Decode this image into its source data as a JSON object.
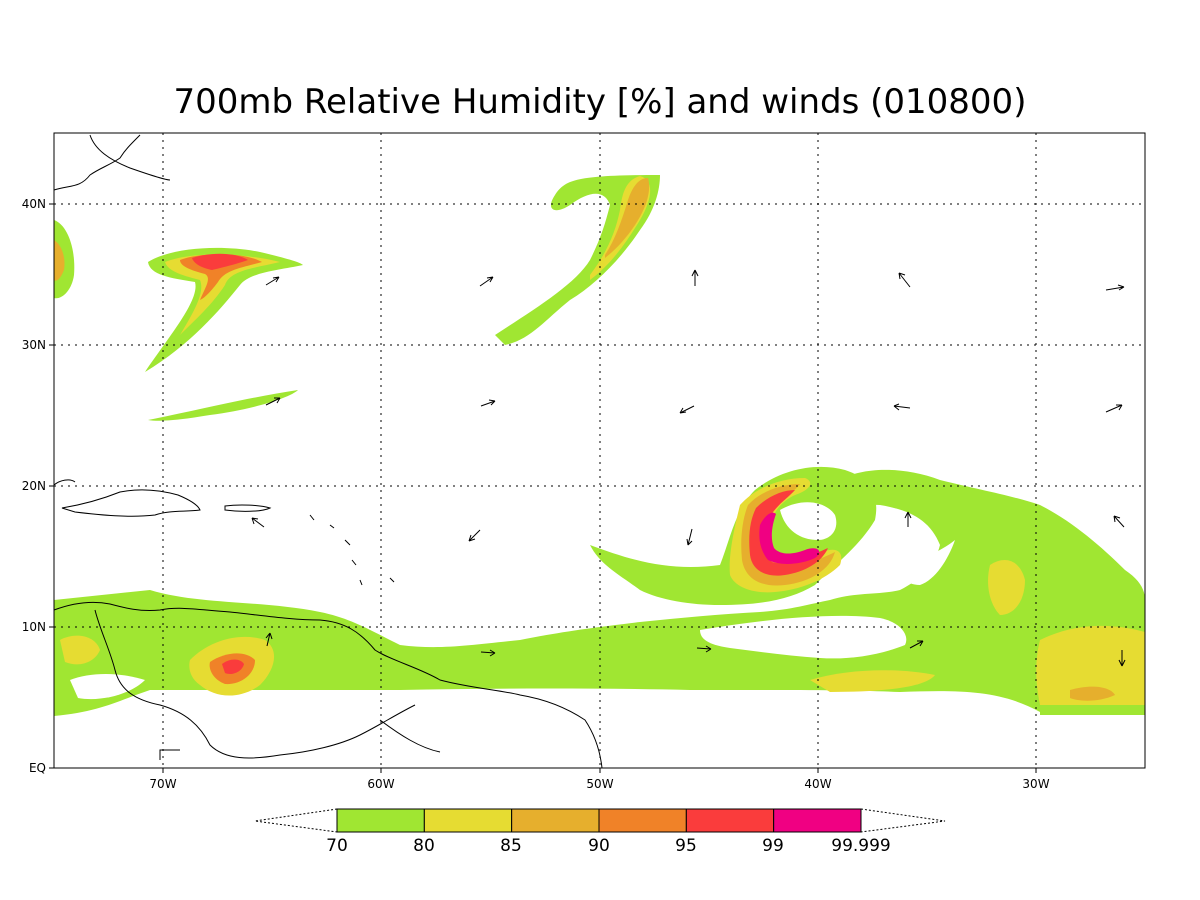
{
  "title": "700mb Relative Humidity [%] and winds (010800)",
  "lat_ticks": [
    "40N",
    "30N",
    "20N",
    "10N",
    "EQ"
  ],
  "lon_ticks": [
    "70W",
    "60W",
    "50W",
    "40W",
    "30W"
  ],
  "colorbar": {
    "labels": [
      "70",
      "80",
      "85",
      "90",
      "95",
      "99",
      "99.999"
    ],
    "colors": [
      "#a0e632",
      "#e6dc32",
      "#e6af2d",
      "#f08228",
      "#fa3c3c",
      "#f00082"
    ]
  }
}
